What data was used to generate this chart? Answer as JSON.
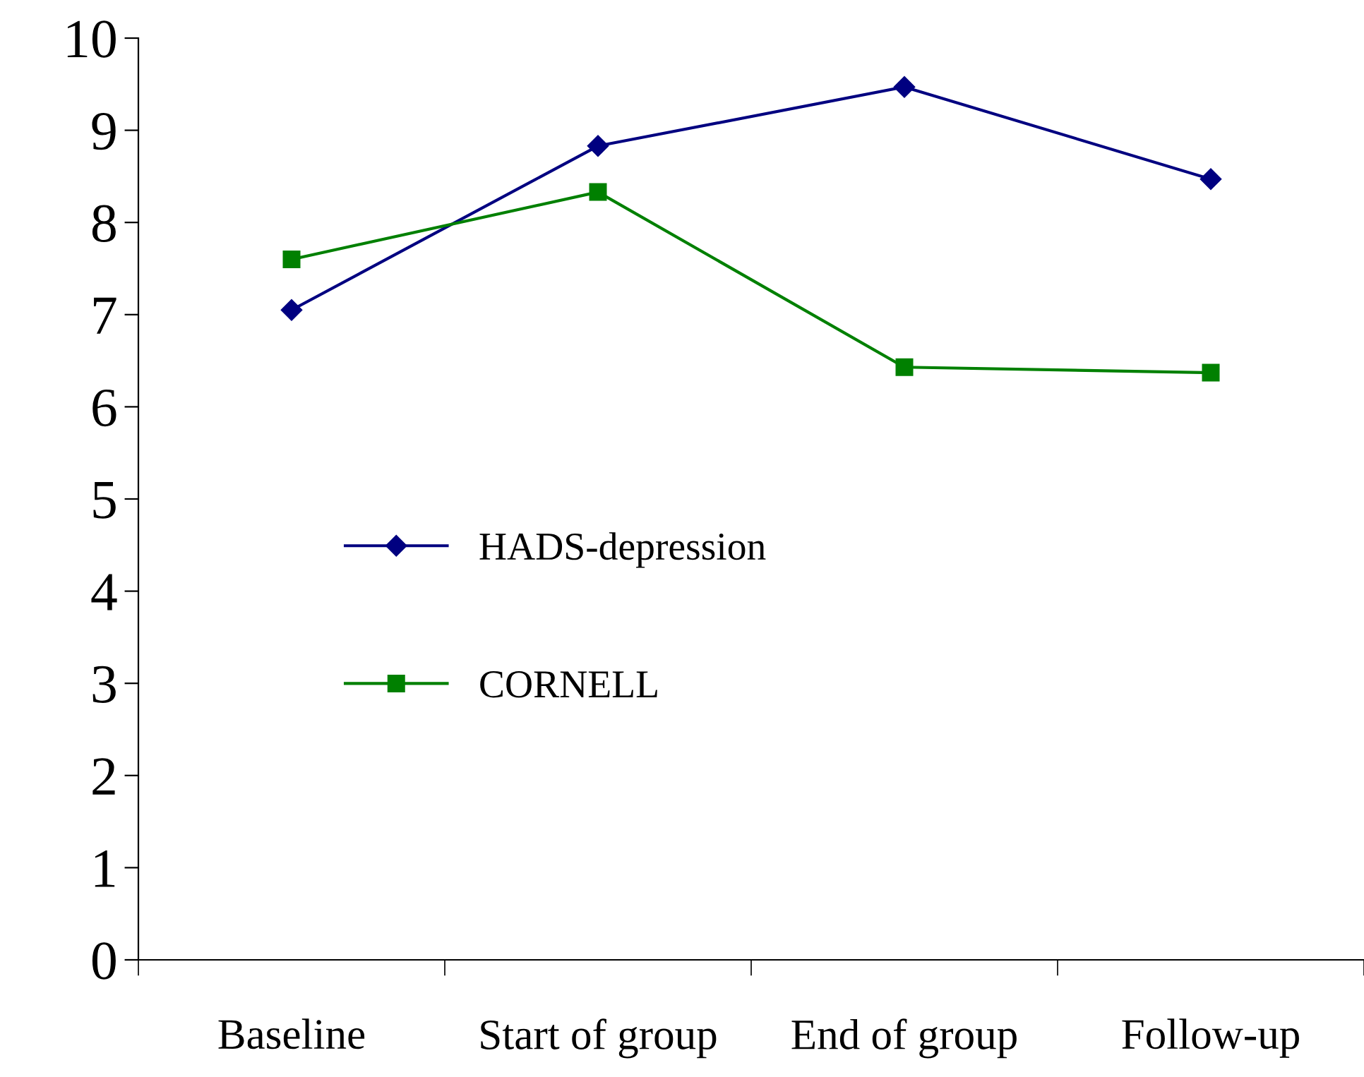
{
  "chart_data": {
    "type": "line",
    "categories": [
      "Baseline",
      "Start of group",
      "End of group",
      "Follow-up"
    ],
    "series": [
      {
        "name": "HADS-depression",
        "color": "#000080",
        "values": [
          7.05,
          8.83,
          9.47,
          8.47
        ],
        "marker": "diamond"
      },
      {
        "name": "CORNELL",
        "color": "#008000",
        "values": [
          7.6,
          8.33,
          6.43,
          6.37
        ],
        "marker": "square"
      }
    ],
    "ylim": [
      0,
      10
    ],
    "yticks": [
      0,
      1,
      2,
      3,
      4,
      5,
      6,
      7,
      8,
      9,
      10
    ],
    "grid": false,
    "legend": "center left",
    "line_style": "solid"
  }
}
